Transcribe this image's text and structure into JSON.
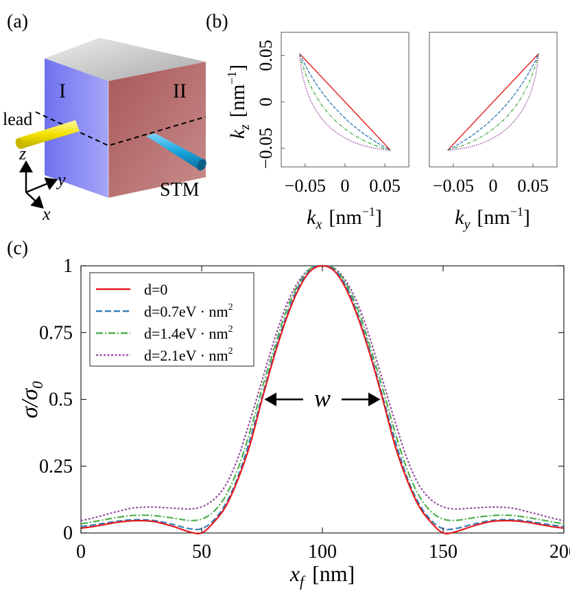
{
  "panels": {
    "a": {
      "label": "(a)",
      "region_1": "I",
      "region_2": "II",
      "lead_label": "lead",
      "stm_label": "STM",
      "axis_z": "z",
      "axis_y": "y",
      "axis_x": "x",
      "colors": {
        "region_1": "#6f72f0",
        "region_2": "#b86a6a",
        "top": "#c8c8c8",
        "lead": "#f5e500",
        "stm": "#1aa5e0"
      }
    },
    "b": {
      "label": "(b)"
    },
    "c": {
      "label": "(c)"
    }
  },
  "chart_data": [
    {
      "id": "b-left",
      "type": "line",
      "xlabel_sym": "k",
      "xlabel_sub": "x",
      "xlabel_unit": "[nm",
      "xlabel_exp": "−1",
      "xlabel_close": "]",
      "ylabel_sym": "k",
      "ylabel_sub": "z",
      "ylabel_unit": "[nm",
      "ylabel_exp": "−1",
      "ylabel_close": "]",
      "xlim": [
        -0.08,
        0.08
      ],
      "ylim": [
        -0.07,
        0.075
      ],
      "xticks": [
        -0.05,
        0,
        0.05
      ],
      "xtick_labels": [
        "−0.05",
        "0",
        "0.05"
      ],
      "yticks": [
        -0.05,
        0,
        0.05
      ],
      "ytick_labels": [
        "−0.05",
        "0",
        "0.05"
      ],
      "series": [
        {
          "name": "d=0",
          "color": "#e41a1c",
          "dash": "",
          "start": [
            -0.057,
            0.052
          ],
          "end": [
            0.057,
            -0.052
          ],
          "control": [
            0.0,
            0.0
          ]
        },
        {
          "name": "d=0.7",
          "color": "#377eb8",
          "dash": "5,2",
          "start": [
            -0.057,
            0.052
          ],
          "end": [
            0.057,
            -0.052
          ],
          "control": [
            -0.02,
            -0.018
          ]
        },
        {
          "name": "d=1.4",
          "color": "#4daf4a",
          "dash": "5,2,1,2",
          "start": [
            -0.057,
            0.052
          ],
          "end": [
            0.057,
            -0.052
          ],
          "control": [
            -0.034,
            -0.032
          ]
        },
        {
          "name": "d=2.1",
          "color": "#984ea3",
          "dash": "1.5,1.5",
          "start": [
            -0.057,
            0.052
          ],
          "end": [
            0.057,
            -0.052
          ],
          "control": [
            -0.048,
            -0.046
          ]
        }
      ]
    },
    {
      "id": "b-right",
      "type": "line",
      "xlabel_sym": "k",
      "xlabel_sub": "y",
      "xlabel_unit": "[nm",
      "xlabel_exp": "−1",
      "xlabel_close": "]",
      "xlim": [
        -0.08,
        0.08
      ],
      "ylim": [
        -0.07,
        0.075
      ],
      "xticks": [
        -0.05,
        0,
        0.05
      ],
      "xtick_labels": [
        "−0.05",
        "0",
        "0.05"
      ],
      "series": [
        {
          "name": "d=0",
          "color": "#e41a1c",
          "dash": "",
          "start": [
            -0.057,
            -0.052
          ],
          "end": [
            0.057,
            0.052
          ],
          "control": [
            0.0,
            0.0
          ]
        },
        {
          "name": "d=0.7",
          "color": "#377eb8",
          "dash": "5,2",
          "start": [
            -0.057,
            -0.052
          ],
          "end": [
            0.057,
            0.052
          ],
          "control": [
            0.02,
            -0.018
          ]
        },
        {
          "name": "d=1.4",
          "color": "#4daf4a",
          "dash": "5,2,1,2",
          "start": [
            -0.057,
            -0.052
          ],
          "end": [
            0.057,
            0.052
          ],
          "control": [
            0.034,
            -0.032
          ]
        },
        {
          "name": "d=2.1",
          "color": "#984ea3",
          "dash": "1.5,1.5",
          "start": [
            -0.057,
            -0.052
          ],
          "end": [
            0.057,
            0.052
          ],
          "control": [
            0.048,
            -0.046
          ]
        }
      ]
    },
    {
      "id": "c",
      "type": "line",
      "xlabel_sym": "x",
      "xlabel_sub": "f",
      "xlabel_unit": "[nm]",
      "ylabel": "σ/σ",
      "ylabel_sub": "0",
      "xlim": [
        0,
        200
      ],
      "ylim": [
        0,
        1
      ],
      "xticks": [
        0,
        50,
        100,
        150,
        200
      ],
      "xtick_labels": [
        "0",
        "50",
        "100",
        "150",
        "200"
      ],
      "yticks": [
        0,
        0.25,
        0.5,
        0.75,
        1
      ],
      "ytick_labels": [
        "0",
        "0.25",
        "0.5",
        "0.75",
        "1"
      ],
      "annotation": {
        "text": "w",
        "x_left": 75,
        "x_right": 125,
        "y": 0.5
      },
      "legend_position": "top-left",
      "series": [
        {
          "name": "d=0",
          "legend_main": "d=0",
          "legend_sup": "",
          "color": "#e41a1c",
          "dash": "",
          "width": 2.2,
          "points": [
            [
              0,
              0.018
            ],
            [
              5,
              0.024
            ],
            [
              10,
              0.032
            ],
            [
              15,
              0.04
            ],
            [
              22,
              0.046
            ],
            [
              30,
              0.043
            ],
            [
              38,
              0.025
            ],
            [
              45,
              0.004
            ],
            [
              50,
              0.0
            ],
            [
              55,
              0.04
            ],
            [
              60,
              0.1
            ],
            [
              65,
              0.2
            ],
            [
              70,
              0.33
            ],
            [
              75,
              0.5
            ],
            [
              80,
              0.66
            ],
            [
              85,
              0.8
            ],
            [
              90,
              0.91
            ],
            [
              95,
              0.98
            ],
            [
              100,
              1.0
            ],
            [
              105,
              0.98
            ],
            [
              110,
              0.91
            ],
            [
              115,
              0.8
            ],
            [
              120,
              0.66
            ],
            [
              125,
              0.5
            ],
            [
              130,
              0.33
            ],
            [
              135,
              0.2
            ],
            [
              140,
              0.1
            ],
            [
              145,
              0.04
            ],
            [
              150,
              0.0
            ],
            [
              155,
              0.004
            ],
            [
              162,
              0.025
            ],
            [
              170,
              0.043
            ],
            [
              178,
              0.046
            ],
            [
              185,
              0.04
            ],
            [
              190,
              0.032
            ],
            [
              195,
              0.024
            ],
            [
              200,
              0.018
            ]
          ]
        },
        {
          "name": "d=0.7",
          "legend_main": "d=0.7eV · nm",
          "legend_sup": "2",
          "color": "#377eb8",
          "dash": "9,4",
          "width": 2.2,
          "points": [
            [
              0,
              0.024
            ],
            [
              5,
              0.03
            ],
            [
              10,
              0.037
            ],
            [
              15,
              0.044
            ],
            [
              22,
              0.05
            ],
            [
              30,
              0.047
            ],
            [
              38,
              0.032
            ],
            [
              45,
              0.016
            ],
            [
              50,
              0.016
            ],
            [
              55,
              0.048
            ],
            [
              60,
              0.11
            ],
            [
              65,
              0.21
            ],
            [
              70,
              0.35
            ],
            [
              75,
              0.51
            ],
            [
              80,
              0.67
            ],
            [
              85,
              0.81
            ],
            [
              90,
              0.92
            ],
            [
              95,
              0.985
            ],
            [
              100,
              1.0
            ],
            [
              105,
              0.985
            ],
            [
              110,
              0.92
            ],
            [
              115,
              0.81
            ],
            [
              120,
              0.67
            ],
            [
              125,
              0.51
            ],
            [
              130,
              0.35
            ],
            [
              135,
              0.21
            ],
            [
              140,
              0.11
            ],
            [
              145,
              0.048
            ],
            [
              150,
              0.016
            ],
            [
              155,
              0.016
            ],
            [
              162,
              0.032
            ],
            [
              170,
              0.047
            ],
            [
              178,
              0.05
            ],
            [
              185,
              0.044
            ],
            [
              190,
              0.037
            ],
            [
              195,
              0.03
            ],
            [
              200,
              0.024
            ]
          ]
        },
        {
          "name": "d=1.4",
          "legend_main": "d=1.4eV · nm",
          "legend_sup": "2",
          "color": "#4daf4a",
          "dash": "10,3,2,3",
          "width": 2.2,
          "points": [
            [
              0,
              0.034
            ],
            [
              5,
              0.042
            ],
            [
              10,
              0.05
            ],
            [
              15,
              0.058
            ],
            [
              22,
              0.066
            ],
            [
              30,
              0.065
            ],
            [
              38,
              0.056
            ],
            [
              45,
              0.047
            ],
            [
              50,
              0.052
            ],
            [
              55,
              0.08
            ],
            [
              60,
              0.14
            ],
            [
              65,
              0.24
            ],
            [
              70,
              0.38
            ],
            [
              75,
              0.54
            ],
            [
              80,
              0.69
            ],
            [
              85,
              0.83
            ],
            [
              90,
              0.93
            ],
            [
              95,
              0.99
            ],
            [
              100,
              1.0
            ],
            [
              105,
              0.99
            ],
            [
              110,
              0.93
            ],
            [
              115,
              0.83
            ],
            [
              120,
              0.69
            ],
            [
              125,
              0.54
            ],
            [
              130,
              0.38
            ],
            [
              135,
              0.24
            ],
            [
              140,
              0.14
            ],
            [
              145,
              0.08
            ],
            [
              150,
              0.052
            ],
            [
              155,
              0.047
            ],
            [
              162,
              0.056
            ],
            [
              170,
              0.065
            ],
            [
              178,
              0.066
            ],
            [
              185,
              0.058
            ],
            [
              190,
              0.05
            ],
            [
              195,
              0.042
            ],
            [
              200,
              0.034
            ]
          ]
        },
        {
          "name": "d=2.1",
          "legend_main": "d=2.1eV · nm",
          "legend_sup": "2",
          "color": "#984ea3",
          "dash": "3,2.5",
          "width": 2.2,
          "points": [
            [
              0,
              0.046
            ],
            [
              5,
              0.056
            ],
            [
              10,
              0.068
            ],
            [
              15,
              0.08
            ],
            [
              22,
              0.094
            ],
            [
              30,
              0.097
            ],
            [
              38,
              0.093
            ],
            [
              45,
              0.09
            ],
            [
              50,
              0.098
            ],
            [
              55,
              0.125
            ],
            [
              60,
              0.18
            ],
            [
              65,
              0.28
            ],
            [
              70,
              0.42
            ],
            [
              75,
              0.57
            ],
            [
              80,
              0.72
            ],
            [
              85,
              0.85
            ],
            [
              90,
              0.94
            ],
            [
              95,
              0.99
            ],
            [
              100,
              1.0
            ],
            [
              105,
              0.99
            ],
            [
              110,
              0.94
            ],
            [
              115,
              0.85
            ],
            [
              120,
              0.72
            ],
            [
              125,
              0.57
            ],
            [
              130,
              0.42
            ],
            [
              135,
              0.28
            ],
            [
              140,
              0.18
            ],
            [
              145,
              0.125
            ],
            [
              150,
              0.098
            ],
            [
              155,
              0.09
            ],
            [
              162,
              0.093
            ],
            [
              170,
              0.097
            ],
            [
              178,
              0.094
            ],
            [
              185,
              0.08
            ],
            [
              190,
              0.068
            ],
            [
              195,
              0.056
            ],
            [
              200,
              0.046
            ]
          ]
        }
      ]
    }
  ]
}
